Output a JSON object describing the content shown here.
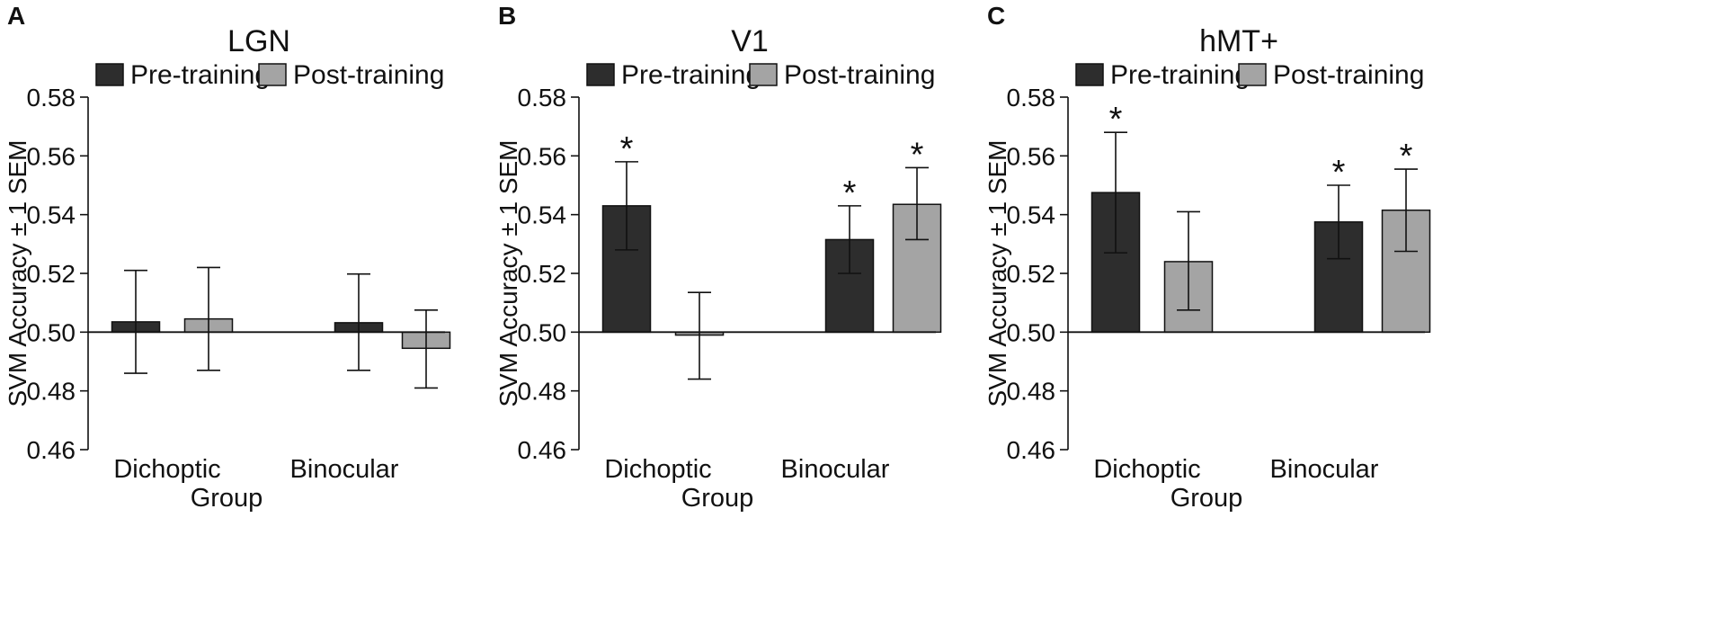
{
  "colors": {
    "pre": "#2d2d2d",
    "post": "#a4a4a4",
    "axis": "#111111",
    "background": "#ffffff"
  },
  "chart_data": [
    {
      "type": "bar",
      "panel": "A",
      "title": "LGN",
      "categories": [
        "Dichoptic",
        "Binocular"
      ],
      "xlabel": "Group",
      "ylabel": "SVM Accuracy ± 1 SEM",
      "ylim": [
        0.46,
        0.58
      ],
      "baseline": 0.5,
      "yticks": [
        "0.46",
        "0.48",
        "0.50",
        "0.52",
        "0.54",
        "0.56",
        "0.58"
      ],
      "legend": [
        "Pre-training",
        "Post-training"
      ],
      "series": [
        {
          "name": "Pre-training",
          "values": [
            0.5035,
            0.5032
          ],
          "sem_low": [
            0.486,
            0.487
          ],
          "sem_high": [
            0.521,
            0.5198
          ],
          "significant": [
            false,
            false
          ]
        },
        {
          "name": "Post-training",
          "values": [
            0.5045,
            0.4945
          ],
          "sem_low": [
            0.487,
            0.481
          ],
          "sem_high": [
            0.522,
            0.5075
          ],
          "significant": [
            false,
            false
          ]
        }
      ],
      "annotation": "*"
    },
    {
      "type": "bar",
      "panel": "B",
      "title": "V1",
      "categories": [
        "Dichoptic",
        "Binocular"
      ],
      "xlabel": "Group",
      "ylabel": "SVM Accuracy ± 1 SEM",
      "ylim": [
        0.46,
        0.58
      ],
      "baseline": 0.5,
      "yticks": [
        "0.46",
        "0.48",
        "0.50",
        "0.52",
        "0.54",
        "0.56",
        "0.58"
      ],
      "legend": [
        "Pre-training",
        "Post-training"
      ],
      "series": [
        {
          "name": "Pre-training",
          "values": [
            0.543,
            0.5315
          ],
          "sem_low": [
            0.528,
            0.52
          ],
          "sem_high": [
            0.558,
            0.543
          ],
          "significant": [
            true,
            true
          ]
        },
        {
          "name": "Post-training",
          "values": [
            0.499,
            0.5435
          ],
          "sem_low": [
            0.484,
            0.5315
          ],
          "sem_high": [
            0.5135,
            0.556
          ],
          "significant": [
            false,
            true
          ]
        }
      ],
      "annotation": "*"
    },
    {
      "type": "bar",
      "panel": "C",
      "title": "hMT+",
      "categories": [
        "Dichoptic",
        "Binocular"
      ],
      "xlabel": "Group",
      "ylabel": "SVM Accuracy ± 1 SEM",
      "ylim": [
        0.46,
        0.58
      ],
      "baseline": 0.5,
      "yticks": [
        "0.46",
        "0.48",
        "0.50",
        "0.52",
        "0.54",
        "0.56",
        "0.58"
      ],
      "legend": [
        "Pre-training",
        "Post-training"
      ],
      "series": [
        {
          "name": "Pre-training",
          "values": [
            0.5475,
            0.5375
          ],
          "sem_low": [
            0.527,
            0.525
          ],
          "sem_high": [
            0.568,
            0.55
          ],
          "significant": [
            true,
            true
          ]
        },
        {
          "name": "Post-training",
          "values": [
            0.524,
            0.5415
          ],
          "sem_low": [
            0.5075,
            0.5275
          ],
          "sem_high": [
            0.541,
            0.5555
          ],
          "significant": [
            false,
            true
          ]
        }
      ],
      "annotation": "*"
    }
  ]
}
